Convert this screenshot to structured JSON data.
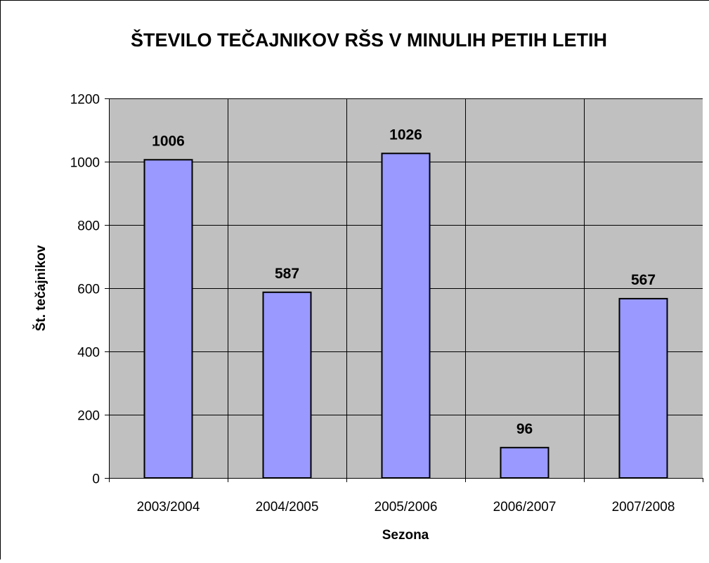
{
  "chart_data": {
    "type": "bar",
    "title": "ŠTEVILO TEČAJNIKOV RŠS V MINULIH PETIH LETIH",
    "xlabel": "Sezona",
    "ylabel": "Št. tečajnikov",
    "categories": [
      "2003/2004",
      "2004/2005",
      "2005/2006",
      "2006/2007",
      "2007/2008"
    ],
    "values": [
      1006,
      587,
      1026,
      96,
      567
    ],
    "data_labels": [
      "1006",
      "587",
      "1026",
      "96",
      "567"
    ],
    "ylim": [
      0,
      1200
    ],
    "yticks": [
      0,
      200,
      400,
      600,
      800,
      1000,
      1200
    ],
    "ytick_labels": [
      "0",
      "200",
      "400",
      "600",
      "800",
      "1000",
      "1200"
    ],
    "grid": true,
    "legend": "none",
    "colors": {
      "bar_fill": "#9999ff",
      "bar_stroke": "#000000",
      "plot_background": "#c0c0c0",
      "gridline": "#000000"
    }
  }
}
